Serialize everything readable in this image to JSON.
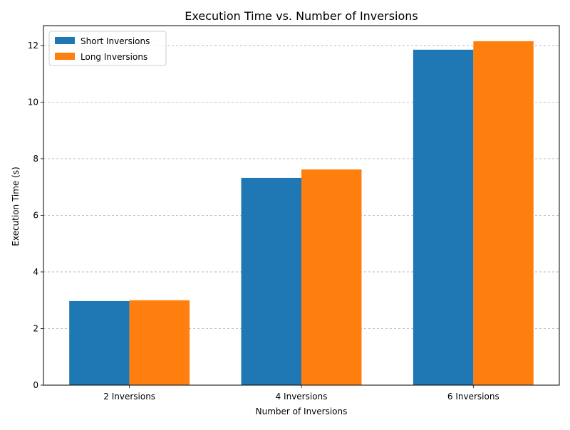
{
  "chart_data": {
    "type": "bar",
    "title": "Execution Time vs. Number of Inversions",
    "xlabel": "Number of Inversions",
    "ylabel": "Execution Time (s)",
    "categories": [
      "2 Inversions",
      "4 Inversions",
      "6 Inversions"
    ],
    "series": [
      {
        "name": "Short Inversions",
        "color": "#1f77b4",
        "values": [
          2.97,
          7.32,
          11.85
        ]
      },
      {
        "name": "Long Inversions",
        "color": "#ff7f0e",
        "values": [
          3.0,
          7.62,
          12.15
        ]
      }
    ],
    "ylim": [
      0,
      12.7
    ],
    "yticks": [
      0,
      2,
      4,
      6,
      8,
      10,
      12
    ],
    "grid": "y-dashed",
    "legend_position": "top-left"
  }
}
